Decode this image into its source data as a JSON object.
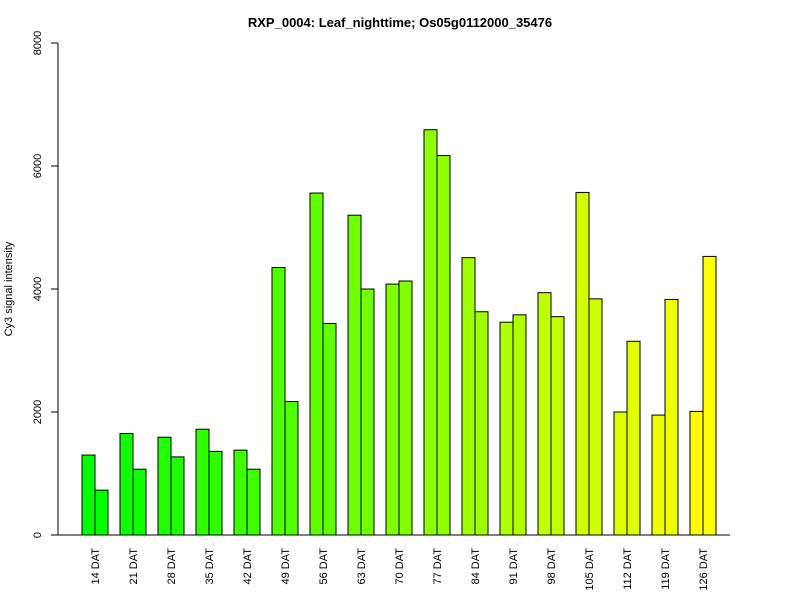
{
  "chart_data": {
    "type": "bar",
    "title": "RXP_0004: Leaf_nighttime; Os05g0112000_35476",
    "xlabel": "",
    "ylabel": "Cy3 signal intensity",
    "ylim": [
      0,
      8000
    ],
    "yticks": [
      0,
      2000,
      4000,
      6000,
      8000
    ],
    "categories": [
      "14 DAT",
      "21 DAT",
      "28 DAT",
      "35 DAT",
      "42 DAT",
      "49 DAT",
      "56 DAT",
      "63 DAT",
      "70 DAT",
      "77 DAT",
      "84 DAT",
      "91 DAT",
      "98 DAT",
      "105 DAT",
      "112 DAT",
      "119 DAT",
      "126 DAT"
    ],
    "series": [
      {
        "values": [
          1300,
          1650,
          1590,
          1720,
          1380,
          4350,
          5560,
          5200,
          4080,
          6590,
          4510,
          3460,
          3940,
          5570,
          2000,
          1950,
          2010
        ]
      },
      {
        "values": [
          730,
          1070,
          1270,
          1360,
          1070,
          2170,
          3440,
          4000,
          4130,
          6170,
          3630,
          3580,
          3550,
          3840,
          3150,
          3830,
          4530
        ]
      }
    ],
    "bar_colors": [
      "#00FF00",
      "#10FF00",
      "#20FF00",
      "#30FF00",
      "#40FF00",
      "#50FF00",
      "#60FF00",
      "#70FF00",
      "#80FF00",
      "#8FFF00",
      "#9FFF00",
      "#AFFF00",
      "#BFFF00",
      "#CFFF00",
      "#DFFF00",
      "#EFFF00",
      "#FFFF00"
    ],
    "grid": false,
    "legend": "none"
  }
}
